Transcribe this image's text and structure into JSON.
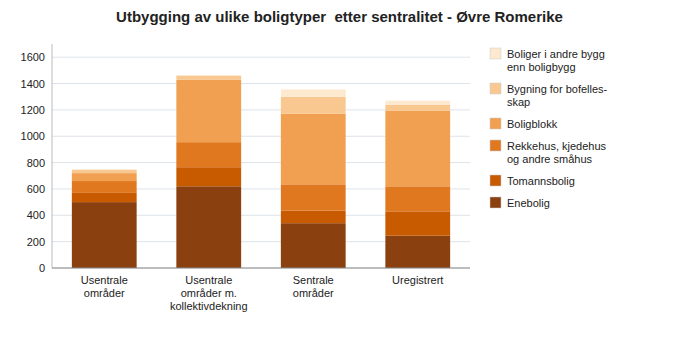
{
  "chart_data": {
    "type": "bar",
    "stacked": true,
    "title": "Utbygging av ulike boligtyper  etter sentralitet - Øvre Romerike",
    "categories": [
      "Usentrale\nområder",
      "Usentrale\nområder m.\nkollektivdekning",
      "Sentrale\nområder",
      "Uregistrert"
    ],
    "series": [
      {
        "name": "Enebolig",
        "color": "#8B4010",
        "values": [
          500,
          620,
          340,
          245
        ]
      },
      {
        "name": "Tomannsbolig",
        "color": "#C85A00",
        "values": [
          70,
          145,
          95,
          185
        ]
      },
      {
        "name": "Rekkehus, kjedehus\nog andre småhus",
        "color": "#E07820",
        "values": [
          90,
          190,
          200,
          190
        ]
      },
      {
        "name": "Boligblokk",
        "color": "#F0A050",
        "values": [
          60,
          475,
          535,
          575
        ]
      },
      {
        "name": "Bygning for bofelles-\nskap",
        "color": "#F8C890",
        "values": [
          25,
          30,
          130,
          45
        ]
      },
      {
        "name": "Boliger i andre bygg\nenn boligbygg",
        "color": "#FDE8D0",
        "values": [
          5,
          5,
          55,
          30
        ]
      }
    ],
    "ylim": [
      0,
      1700
    ],
    "yticks": [
      0,
      200,
      400,
      600,
      800,
      1000,
      1200,
      1400,
      1600
    ],
    "grid": true,
    "legend": "right"
  }
}
